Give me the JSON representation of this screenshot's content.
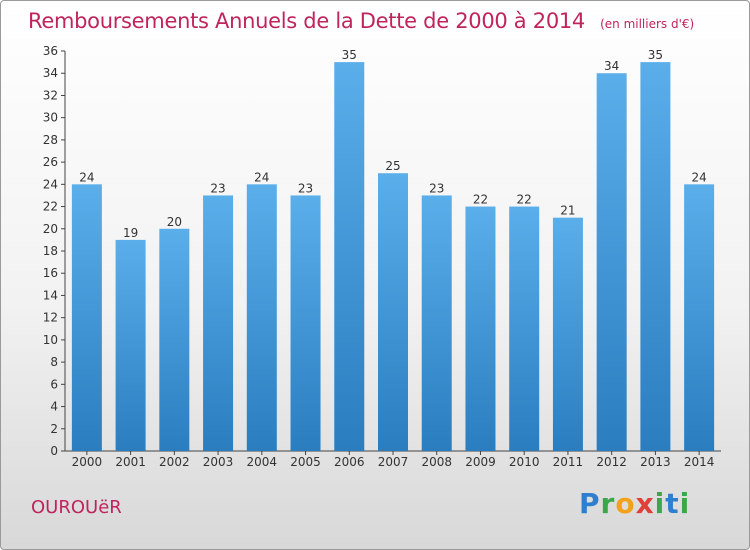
{
  "header": {
    "title": "Remboursements Annuels de la Dette de 2000 à 2014",
    "unit": "(en milliers d'€)"
  },
  "footer": {
    "commune": "OUROUëR",
    "logo_letters": [
      "P",
      "r",
      "o",
      "x",
      "i",
      "t",
      "i"
    ]
  },
  "colors": {
    "bar_top": "#5aaeea",
    "bar_bottom": "#2a7ec0",
    "accent": "#c0245c"
  },
  "chart_data": {
    "type": "bar",
    "categories": [
      "2000",
      "2001",
      "2002",
      "2003",
      "2004",
      "2005",
      "2006",
      "2007",
      "2008",
      "2009",
      "2010",
      "2011",
      "2012",
      "2013",
      "2014"
    ],
    "values": [
      24,
      19,
      20,
      23,
      24,
      23,
      35,
      25,
      23,
      22,
      22,
      21,
      34,
      35,
      24
    ],
    "ylim": [
      0,
      36
    ],
    "yticks": [
      0,
      2,
      4,
      6,
      8,
      10,
      12,
      14,
      16,
      18,
      20,
      22,
      24,
      26,
      28,
      30,
      32,
      34,
      36
    ],
    "grid": false
  }
}
